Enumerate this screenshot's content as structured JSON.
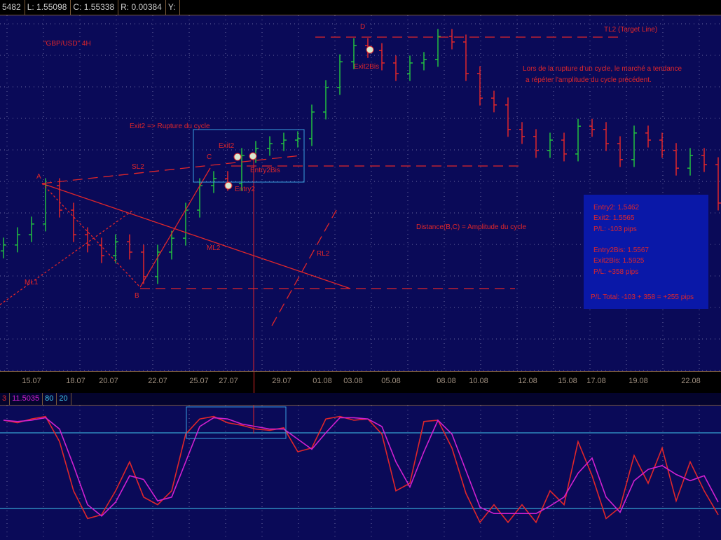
{
  "header": {
    "cells": [
      "5482",
      "L: 1.55098",
      "C: 1.55338",
      "R: 0.00384",
      "Y:"
    ]
  },
  "indicator_header": {
    "cells": [
      "3",
      "11.5035",
      "80",
      "20"
    ]
  },
  "annotations": {
    "symbol": "\"GBP/USD\" 4H",
    "D": "D",
    "tl2": "TL2 (Target Line)",
    "note1": "Lors de la rupture d'un cycle, le marché a tendance",
    "note2": "a répéter l'amplitude du cycle précédent.",
    "exit2bis": "Exit2Bis",
    "rupture": "Exit2 => Rupture du cycle",
    "A": "A",
    "SL2": "SL2",
    "C": "C",
    "exit2": "Exit2",
    "entry2bis": "Entry2Bis",
    "entry2": "Entry2",
    "distance": "Distance(B,C) = Amplitude du cycle",
    "ML2": "ML2",
    "RL2": "RL2",
    "ML1": "ML1",
    "B": "B"
  },
  "info_box": {
    "lines": [
      "Entry2: 1.5462",
      "Exit2: 1.5565",
      "P/L: -103 pips",
      "Entry2Bis: 1.5567",
      "Exit2Bis: 1.5925",
      "P/L: +358 pips",
      "P/L Total: -103 + 358 = +255 pips"
    ]
  },
  "colors": {
    "background": "#0a0a58",
    "up_bar": "#22c040",
    "down_bar": "#e0262a",
    "stoch_k": "#e0262a",
    "stoch_d": "#d020d0",
    "levels": "#40c8f0",
    "annotation": "#e0262a"
  },
  "chart_data": [
    {
      "type": "ohlc",
      "title": "\"GBP/USD\" 4H",
      "x_tick_labels": [
        "15.07",
        "18.07",
        "20.07",
        "22.07",
        "25.07",
        "27.07",
        "29.07",
        "01.08",
        "03.08",
        "05.08",
        "08.08",
        "10.08",
        "12.08",
        "15.08",
        "17.08",
        "19.08",
        "22.08"
      ],
      "close": [
        1.5261,
        1.5296,
        1.5332,
        1.5462,
        1.5379,
        1.5296,
        1.5261,
        1.5225,
        1.5272,
        1.5237,
        1.5154,
        1.5237,
        1.5284,
        1.5379,
        1.5462,
        1.5486,
        1.5469,
        1.5564,
        1.5588,
        1.5604,
        1.5616,
        1.5621,
        1.5711,
        1.5794,
        1.5881,
        1.5936,
        1.5919,
        1.5877,
        1.5841,
        1.5877,
        1.5889,
        1.5967,
        1.5948,
        1.5841,
        1.5758,
        1.5735,
        1.5652,
        1.5628,
        1.5581,
        1.5616,
        1.5569,
        1.5663,
        1.5652,
        1.5604,
        1.555,
        1.564,
        1.5616,
        1.5581,
        1.5521,
        1.5564,
        1.5533,
        1.5403
      ],
      "grid": true
    },
    {
      "type": "line",
      "ylim": [
        0,
        100
      ],
      "levels": [
        80,
        20
      ],
      "series": [
        {
          "values": [
            90,
            88,
            91,
            93,
            73,
            34,
            12,
            15,
            34,
            57,
            29,
            23,
            34,
            79,
            91,
            93,
            88,
            86,
            83,
            82,
            84,
            65,
            68,
            91,
            93,
            90,
            91,
            79,
            34,
            40,
            89,
            90,
            68,
            32,
            9,
            23,
            9,
            23,
            9,
            34,
            23,
            73,
            46,
            12,
            21,
            62,
            40,
            68,
            26,
            57,
            34,
            15
          ]
        },
        {
          "values": [
            90,
            89,
            90,
            92,
            83,
            54,
            23,
            14,
            25,
            46,
            43,
            26,
            29,
            57,
            85,
            92,
            91,
            87,
            85,
            83,
            83,
            75,
            67,
            80,
            92,
            92,
            91,
            85,
            57,
            37,
            65,
            90,
            79,
            50,
            21,
            16,
            16,
            16,
            16,
            22,
            29,
            48,
            60,
            29,
            17,
            42,
            51,
            54,
            47,
            42,
            46,
            25
          ]
        }
      ],
      "grid": true
    }
  ]
}
